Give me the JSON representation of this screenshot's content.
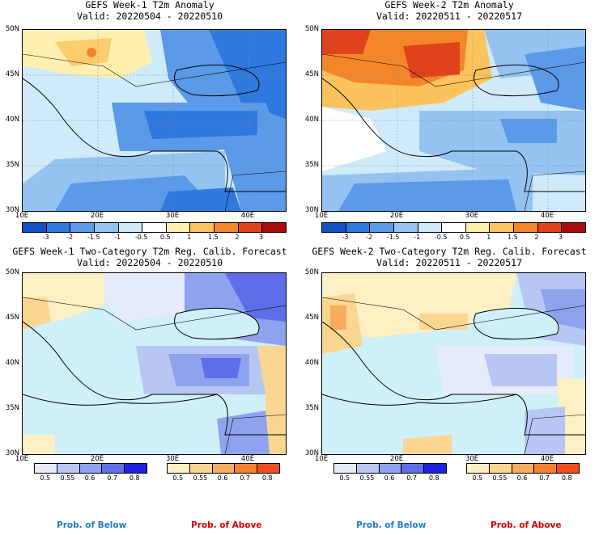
{
  "panels": [
    {
      "title": "GEFS Week-1 T2m Anomaly",
      "valid": "Valid: 20220504 - 20220510"
    },
    {
      "title": "GEFS Week-2 T2m Anomaly",
      "valid": "Valid: 20220511 - 20220517"
    },
    {
      "title": "GEFS Week-1 Two-Category T2m Reg. Calib. Forecast",
      "valid": "Valid: 20220504 - 20220510"
    },
    {
      "title": "GEFS Week-2 Two-Category T2m Reg. Calib. Forecast",
      "valid": "Valid: 20220511 - 20220517"
    }
  ],
  "lat_labels": [
    "50N",
    "45N",
    "40N",
    "35N",
    "30N"
  ],
  "lon_labels": [
    "10E",
    "20E",
    "30E",
    "40E"
  ],
  "anomaly_scale": {
    "labels": [
      "-3",
      "-2",
      "-1.5",
      "-1",
      "-0.5",
      "0.5",
      "1",
      "1.5",
      "2",
      "3"
    ],
    "colors": [
      "#1450c8",
      "#2f78dd",
      "#5b9ae8",
      "#94c3f1",
      "#cfeaf9",
      "#ffffff",
      "#fff0b0",
      "#fcc35c",
      "#f4862a",
      "#e0421b",
      "#a80c0c"
    ]
  },
  "prob_scale": {
    "labels": [
      "0.5",
      "0.55",
      "0.6",
      "0.7",
      "0.8"
    ],
    "below_colors": [
      "#e6ecfb",
      "#b8c6f4",
      "#8fa2ee",
      "#5d6ee8",
      "#1f22e3"
    ],
    "above_colors": [
      "#fdf0c4",
      "#fbd691",
      "#f8ad5e",
      "#f4822f",
      "#f04e1c"
    ]
  },
  "legend": {
    "below": "Prob. of Below",
    "above": "Prob. of Above"
  },
  "colors": {
    "land": "#cfeff9",
    "coast": "#000000",
    "below_text": "#1f7ad0",
    "above_text": "#d40000"
  }
}
